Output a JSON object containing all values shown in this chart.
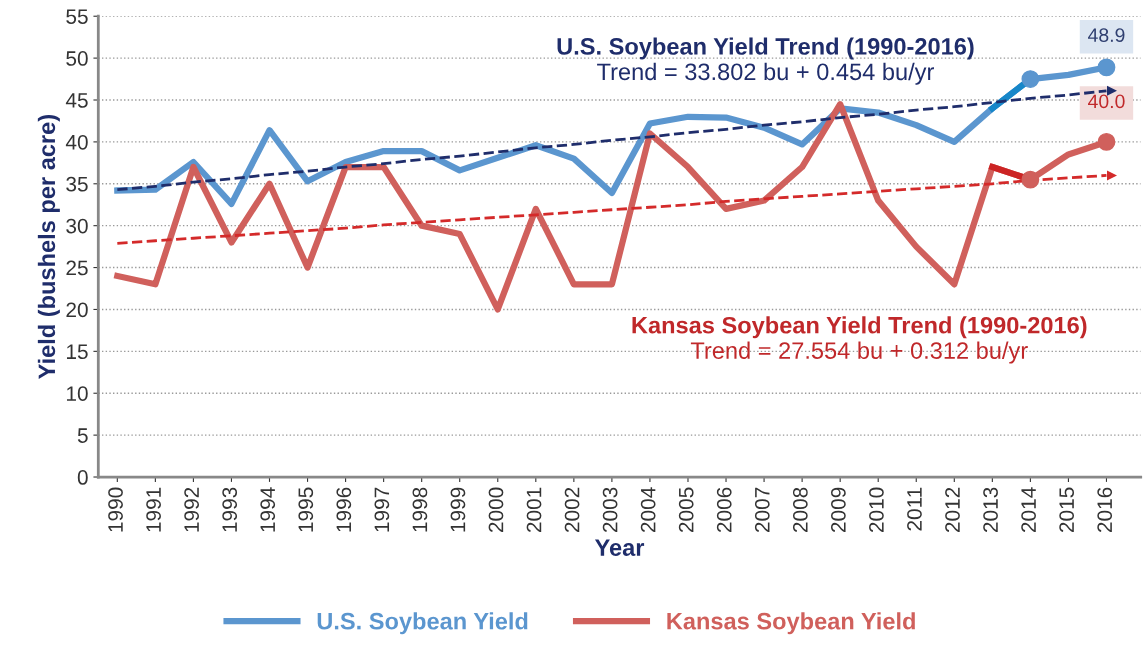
{
  "chart_data": {
    "type": "line",
    "xlabel": "Year",
    "ylabel": "Yield (bushels per acre)",
    "categories": [
      "1990",
      "1991",
      "1992",
      "1993",
      "1994",
      "1995",
      "1996",
      "1997",
      "1998",
      "1999",
      "2000",
      "2001",
      "2002",
      "2003",
      "2004",
      "2005",
      "2006",
      "2007",
      "2008",
      "2009",
      "2010",
      "2011",
      "2012",
      "2013",
      "2014",
      "2015",
      "2016"
    ],
    "series": [
      {
        "name": "U.S. Soybean Yield",
        "color": "#5b96cf",
        "values": [
          34.2,
          34.3,
          37.6,
          32.6,
          41.4,
          35.3,
          37.6,
          38.9,
          38.9,
          36.6,
          38.1,
          39.6,
          38.0,
          33.9,
          42.2,
          43.0,
          42.9,
          41.7,
          39.7,
          44.0,
          43.5,
          42.0,
          40.0,
          44.0,
          47.5,
          48.0,
          48.9
        ]
      },
      {
        "name": "Kansas Soybean Yield",
        "color": "#d0605c",
        "values": [
          24,
          23,
          37,
          28,
          35,
          25,
          37,
          37,
          30,
          29,
          20,
          32,
          23,
          23,
          41,
          37,
          32,
          33,
          37,
          44.5,
          33,
          27.5,
          23,
          37,
          35.5,
          38.5,
          40
        ]
      },
      {
        "type": "line",
        "color": "#1f2d6b",
        "line_style": "dashed",
        "values": [
          34.3,
          34.7,
          35.2,
          35.6,
          36.1,
          36.5,
          37.0,
          37.4,
          37.9,
          38.3,
          38.8,
          39.3,
          39.7,
          40.2,
          40.6,
          41.1,
          41.5,
          42.0,
          42.4,
          42.9,
          43.3,
          43.8,
          44.2,
          44.7,
          45.2,
          45.6,
          46.1
        ]
      },
      {
        "type": "line",
        "color": "#d42a2a",
        "line_style": "dashed",
        "values": [
          27.9,
          28.2,
          28.5,
          28.8,
          29.1,
          29.4,
          29.7,
          30.1,
          30.4,
          30.7,
          31.0,
          31.3,
          31.6,
          31.9,
          32.2,
          32.5,
          32.9,
          33.2,
          33.5,
          33.8,
          34.1,
          34.4,
          34.7,
          35.0,
          35.4,
          35.7,
          36.0
        ]
      },
      {
        "type": "line",
        "color": "#1787c9",
        "values": [
          null,
          null,
          null,
          null,
          null,
          null,
          null,
          null,
          null,
          null,
          null,
          null,
          null,
          null,
          null,
          null,
          null,
          null,
          null,
          null,
          null,
          null,
          null,
          44.0,
          47.5,
          null,
          null
        ]
      },
      {
        "type": "line",
        "color": "#cc2424",
        "values": [
          null,
          null,
          null,
          null,
          null,
          null,
          null,
          null,
          null,
          null,
          null,
          null,
          null,
          null,
          null,
          null,
          null,
          null,
          null,
          null,
          null,
          null,
          null,
          37,
          35.5,
          null,
          null
        ]
      },
      {
        "type": "scatter",
        "color": "#5b96cf",
        "values": [
          null,
          null,
          null,
          null,
          null,
          null,
          null,
          null,
          null,
          null,
          null,
          null,
          null,
          null,
          null,
          null,
          null,
          null,
          null,
          null,
          null,
          null,
          null,
          null,
          47.5,
          null,
          48.9
        ]
      },
      {
        "type": "scatter",
        "color": "#d0605c",
        "values": [
          null,
          null,
          null,
          null,
          null,
          null,
          null,
          null,
          null,
          null,
          null,
          null,
          null,
          null,
          null,
          null,
          null,
          null,
          null,
          null,
          null,
          null,
          null,
          null,
          35.5,
          null,
          40
        ]
      }
    ],
    "annotations": [
      "U.S. Soybean Yield Trend (1990-2016)",
      "Trend = 33.802 bu + 0.454 bu/yr",
      "Kansas Soybean Yield Trend (1990-2016)",
      "Trend = 27.554 bu + 0.312 bu/yr",
      {
        "text": "48.9",
        "x": "2016",
        "y": 48.9
      },
      {
        "text": "40.0",
        "x": "2016",
        "y": 40
      }
    ],
    "ylim": [
      0,
      55
    ],
    "yticks": [
      0,
      5,
      10,
      15,
      20,
      25,
      30,
      35,
      40,
      45,
      50,
      55
    ],
    "grid": "y",
    "legend": "bottom"
  }
}
